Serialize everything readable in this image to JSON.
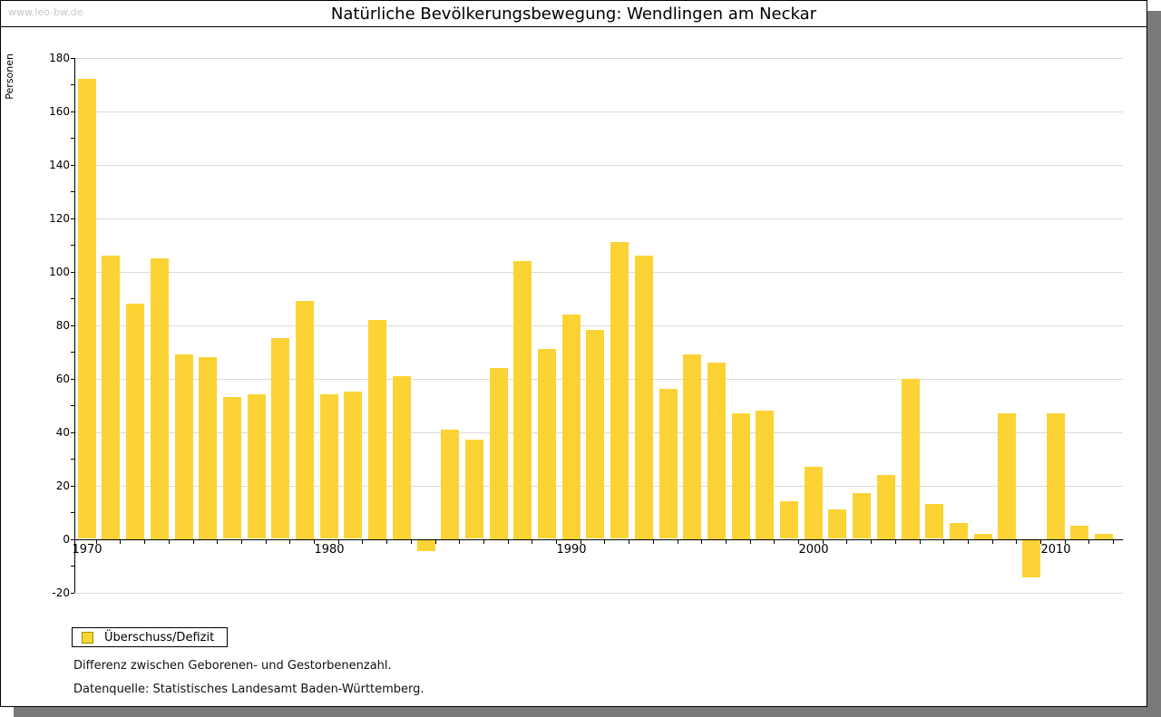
{
  "page": {
    "watermark": "www.leo-bw.de"
  },
  "header": {
    "title": "Natürliche Bevölkerungsbewegung: Wendlingen am Neckar"
  },
  "axes": {
    "y_label": "Personen"
  },
  "legend": {
    "label": "Überschuss/Defizit"
  },
  "notes": {
    "line1": "Differenz zwischen Geborenen- und Gestorbenenzahl.",
    "line2": "Datenquelle: Statistisches Landesamt Baden-Württemberg."
  },
  "colors": {
    "bar": "#fbd335",
    "legend_swatch_border": "#aa8e00",
    "gridline": "#dbdbdb",
    "axis": "#000000",
    "watermark": "#c8c8c8",
    "shadow": "#7a7a7a"
  },
  "chart_data": {
    "type": "bar",
    "title": "Natürliche Bevölkerungsbewegung: Wendlingen am Neckar",
    "xlabel": "",
    "ylabel": "Personen",
    "ylim": [
      -20,
      180
    ],
    "y_major_tick_step": 20,
    "y_minor_tick_step": 10,
    "grid": true,
    "legend_position": "bottom-left",
    "legend_entries": [
      "Überschuss/Defizit"
    ],
    "x_axis_labels": [
      1970,
      1980,
      1990,
      2000,
      2010
    ],
    "categories": [
      1970,
      1971,
      1972,
      1973,
      1974,
      1975,
      1976,
      1977,
      1978,
      1979,
      1980,
      1981,
      1982,
      1983,
      1984,
      1985,
      1986,
      1987,
      1988,
      1989,
      1990,
      1991,
      1992,
      1993,
      1994,
      1995,
      1996,
      1997,
      1998,
      1999,
      2000,
      2001,
      2002,
      2003,
      2004,
      2005,
      2006,
      2007,
      2008,
      2009,
      2010,
      2011,
      2012
    ],
    "series": [
      {
        "name": "Überschuss/Defizit",
        "values": [
          172,
          106,
          88,
          105,
          69,
          68,
          53,
          54,
          75,
          89,
          54,
          55,
          82,
          61,
          -4,
          41,
          37,
          64,
          104,
          71,
          84,
          78,
          111,
          106,
          56,
          69,
          66,
          47,
          48,
          14,
          27,
          11,
          17,
          24,
          60,
          13,
          6,
          2,
          47,
          -14,
          47,
          5,
          2
        ]
      }
    ]
  }
}
